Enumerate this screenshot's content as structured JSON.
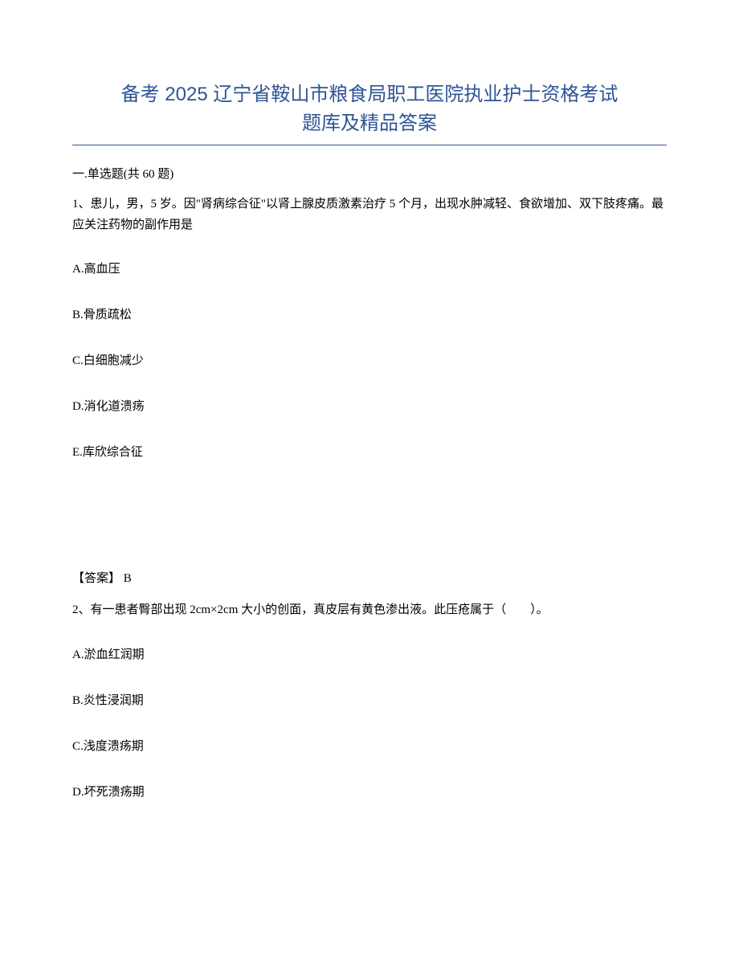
{
  "document": {
    "title_line1": "备考 2025 辽宁省鞍山市粮食局职工医院执业护士资格考试",
    "title_line2": "题库及精品答案",
    "title_color": "#2e5496",
    "underline_color": "#2e5496"
  },
  "section": {
    "header": "一.单选题(共 60 题)"
  },
  "questions": [
    {
      "stem": "1、患儿，男，5 岁。因\"肾病综合征\"以肾上腺皮质激素治疗 5 个月，出现水肿减轻、食欲增加、双下肢疼痛。最应关注药物的副作用是",
      "options": [
        "A.高血压",
        "B.骨质疏松",
        "C.白细胞减少",
        "D.消化道溃疡",
        "E.库欣综合征"
      ],
      "answer_label": "【答案】 B"
    },
    {
      "stem": "2、有一患者臀部出现 2cm×2cm 大小的创面，真皮层有黄色渗出液。此压疮属于（　　）。",
      "options": [
        "A.淤血红润期",
        "B.炎性浸润期",
        "C.浅度溃疡期",
        "D.坏死溃疡期"
      ]
    }
  ]
}
